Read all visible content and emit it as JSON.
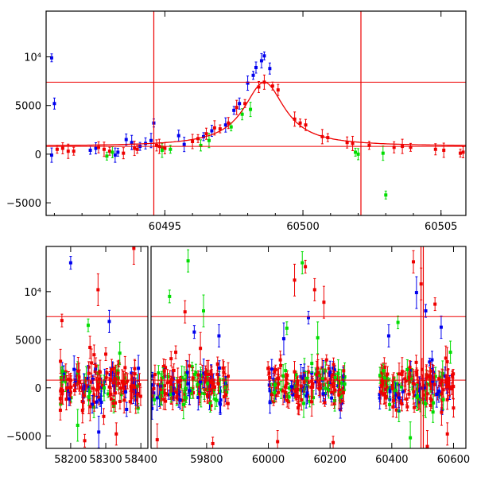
{
  "colors": {
    "blue": "#0000ee",
    "red": "#ee0000",
    "green": "#00dd00",
    "model": "#ee0000",
    "frame": "#000000"
  },
  "chart_data": [
    {
      "type": "scatter",
      "title": "",
      "xlabel": "",
      "ylabel": "",
      "xlim": [
        60490.7,
        60505.9
      ],
      "ylim": [
        -6300,
        14700
      ],
      "xticks": [
        60495,
        60500,
        60505
      ],
      "xtick_labels": [
        "60495",
        "60500",
        "60505"
      ],
      "yticks": [
        -5000,
        0,
        5000,
        10000
      ],
      "ytick_labels": [
        "−5000",
        "0",
        "5000",
        "10⁴"
      ],
      "hlines": [
        7400,
        800
      ],
      "vlines": [
        60494.6,
        60502.1
      ],
      "model_curve": {
        "t0": 60498.6,
        "peak_flux": 7400,
        "baseline": 800,
        "tE": 0.9
      },
      "series": [
        {
          "color": "blue",
          "points": [
            [
              60490.9,
              9900
            ],
            [
              60491.0,
              5200
            ],
            [
              60490.9,
              -100
            ],
            [
              60492.3,
              400
            ],
            [
              60492.5,
              600
            ],
            [
              60493.2,
              -100
            ],
            [
              60493.3,
              200
            ],
            [
              60493.6,
              1500
            ],
            [
              60493.8,
              1200
            ],
            [
              60494.1,
              800
            ],
            [
              60494.3,
              1100
            ],
            [
              60494.5,
              1400
            ],
            [
              60494.6,
              3200
            ],
            [
              60495.5,
              1900
            ],
            [
              60495.7,
              1000
            ],
            [
              60496.4,
              1800
            ],
            [
              60496.7,
              2400
            ],
            [
              60497.2,
              3000
            ],
            [
              60497.5,
              4500
            ],
            [
              60497.7,
              5200
            ],
            [
              60498.0,
              7300
            ],
            [
              60498.2,
              8100
            ],
            [
              60498.3,
              8900
            ],
            [
              60498.5,
              9600
            ],
            [
              60498.6,
              10100
            ],
            [
              60498.8,
              8800
            ]
          ]
        },
        {
          "color": "red",
          "points": [
            [
              60491.1,
              500
            ],
            [
              60491.3,
              600
            ],
            [
              60491.5,
              300
            ],
            [
              60491.7,
              300
            ],
            [
              60492.6,
              700
            ],
            [
              60492.8,
              500
            ],
            [
              60493.0,
              300
            ],
            [
              60493.5,
              100
            ],
            [
              60493.9,
              600
            ],
            [
              60494.0,
              500
            ],
            [
              60494.7,
              900
            ],
            [
              60494.8,
              800
            ],
            [
              60494.9,
              700
            ],
            [
              60495.0,
              600
            ],
            [
              60496.0,
              1300
            ],
            [
              60496.2,
              1600
            ],
            [
              60496.5,
              2100
            ],
            [
              60496.8,
              2700
            ],
            [
              60497.0,
              2600
            ],
            [
              60497.3,
              3200
            ],
            [
              60497.6,
              4800
            ],
            [
              60497.9,
              5200
            ],
            [
              60498.4,
              6900
            ],
            [
              60498.6,
              7400
            ],
            [
              60498.9,
              7000
            ],
            [
              60499.1,
              6600
            ],
            [
              60499.7,
              3600
            ],
            [
              60499.9,
              3200
            ],
            [
              60500.1,
              3000
            ],
            [
              60500.7,
              1800
            ],
            [
              60500.9,
              1700
            ],
            [
              60501.6,
              1200
            ],
            [
              60501.8,
              1100
            ],
            [
              60502.4,
              900
            ],
            [
              60503.3,
              700
            ],
            [
              60503.6,
              800
            ],
            [
              60503.9,
              700
            ],
            [
              60504.8,
              500
            ],
            [
              60505.1,
              400
            ],
            [
              60505.7,
              100
            ],
            [
              60505.8,
              200
            ]
          ]
        },
        {
          "color": "green",
          "points": [
            [
              60492.9,
              -200
            ],
            [
              60493.1,
              200
            ],
            [
              60494.9,
              400
            ],
            [
              60495.2,
              500
            ],
            [
              60496.3,
              900
            ],
            [
              60496.6,
              1400
            ],
            [
              60497.4,
              2800
            ],
            [
              60497.8,
              4100
            ],
            [
              60498.1,
              4600
            ],
            [
              60501.9,
              200
            ],
            [
              60502.0,
              0
            ],
            [
              60502.9,
              100
            ],
            [
              60503.0,
              -4200
            ]
          ]
        }
      ]
    },
    {
      "type": "scatter",
      "title": "",
      "xlabel": "",
      "ylabel": "",
      "xlim": [
        58130,
        60640
      ],
      "ylim": [
        -6300,
        14700
      ],
      "axis_break": [
        58420,
        59620
      ],
      "xticks": [
        58200,
        58300,
        58400,
        59800,
        60000,
        60200,
        60400,
        60600
      ],
      "xtick_labels": [
        "58200",
        "58300",
        "58400",
        "59800",
        "60000",
        "60200",
        "60400",
        "60600"
      ],
      "yticks": [
        -5000,
        0,
        5000,
        10000
      ],
      "ytick_labels": [
        "−5000",
        "0",
        "5000",
        "10⁴"
      ],
      "hlines": [
        7400,
        800
      ],
      "vlines": [
        60494.6,
        60502.1
      ],
      "seasons": [
        {
          "start": 58170,
          "end": 58400
        },
        {
          "start": 59620,
          "end": 59870
        },
        {
          "start": 59990,
          "end": 60250
        },
        {
          "start": 60360,
          "end": 60600
        }
      ],
      "series": [
        {
          "color": "red",
          "points": [
            [
              58175,
              7000
            ],
            [
              58255,
              4200
            ],
            [
              58278,
              10200
            ],
            [
              58300,
              3500
            ],
            [
              58355,
              2100
            ],
            [
              58380,
              14500
            ],
            [
              58240,
              -5500
            ],
            [
              58330,
              -4800
            ],
            [
              59640,
              -5400
            ],
            [
              59700,
              3700
            ],
            [
              59730,
              7900
            ],
            [
              59780,
              4100
            ],
            [
              59820,
              -5800
            ],
            [
              60030,
              -5600
            ],
            [
              60085,
              11200
            ],
            [
              60120,
              12600
            ],
            [
              60150,
              10200
            ],
            [
              60180,
              8900
            ],
            [
              60210,
              -5700
            ],
            [
              60470,
              13100
            ],
            [
              60495,
              10800
            ],
            [
              60540,
              8700
            ],
            [
              60580,
              -4800
            ],
            [
              60515,
              -6100
            ]
          ]
        },
        {
          "color": "blue",
          "points": [
            [
              58200,
              13000
            ],
            [
              58310,
              6900
            ],
            [
              58280,
              -4600
            ],
            [
              59760,
              5800
            ],
            [
              59840,
              5400
            ],
            [
              60050,
              5100
            ],
            [
              60130,
              7300
            ],
            [
              60390,
              5400
            ],
            [
              60480,
              9900
            ],
            [
              60510,
              8000
            ],
            [
              60560,
              6300
            ]
          ]
        },
        {
          "color": "green",
          "points": [
            [
              58250,
              6500
            ],
            [
              58340,
              3600
            ],
            [
              58220,
              -3900
            ],
            [
              59680,
              9500
            ],
            [
              59740,
              13200
            ],
            [
              59790,
              8000
            ],
            [
              60060,
              6200
            ],
            [
              60110,
              13000
            ],
            [
              60160,
              5200
            ],
            [
              60420,
              6800
            ],
            [
              60590,
              3700
            ],
            [
              60460,
              -5200
            ]
          ]
        }
      ]
    }
  ]
}
